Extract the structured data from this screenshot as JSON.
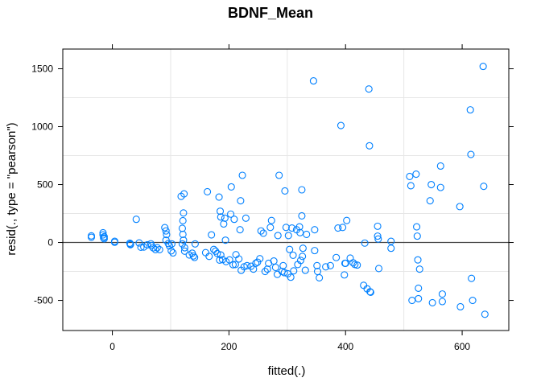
{
  "chart_data": {
    "type": "scatter",
    "title": "BDNF_Mean",
    "xlabel": "fitted(.)",
    "ylabel": "resid(., type = \"pearson\")",
    "xlim": [
      -85,
      680
    ],
    "ylim": [
      -760,
      1670
    ],
    "xticks": [
      0,
      200,
      400,
      600
    ],
    "yticks": [
      -500,
      0,
      500,
      1000,
      1500
    ],
    "grid": true,
    "reference_line_y": 0,
    "colors": {
      "points": "#0080ff",
      "grid": "#e6e6e6",
      "refline": "#444444"
    },
    "points": [
      [
        -36,
        57
      ],
      [
        -36,
        45
      ],
      [
        -16,
        84
      ],
      [
        -16,
        66
      ],
      [
        -15,
        40
      ],
      [
        -14,
        50
      ],
      [
        -14,
        32
      ],
      [
        4,
        10
      ],
      [
        4,
        2
      ],
      [
        30,
        -6
      ],
      [
        31,
        -19
      ],
      [
        31,
        -13
      ],
      [
        41,
        200
      ],
      [
        46,
        -4
      ],
      [
        49,
        -41
      ],
      [
        54,
        -39
      ],
      [
        60,
        -20
      ],
      [
        66,
        -11
      ],
      [
        67,
        -27
      ],
      [
        70,
        -46
      ],
      [
        74,
        -62
      ],
      [
        77,
        -45
      ],
      [
        81,
        -62
      ],
      [
        90,
        128
      ],
      [
        92,
        100
      ],
      [
        93,
        68
      ],
      [
        92,
        20
      ],
      [
        96,
        -9
      ],
      [
        98,
        -30
      ],
      [
        101,
        -72
      ],
      [
        104,
        -90
      ],
      [
        102,
        -12
      ],
      [
        118,
        398
      ],
      [
        122,
        255
      ],
      [
        123,
        420
      ],
      [
        121,
        188
      ],
      [
        120,
        122
      ],
      [
        121,
        70
      ],
      [
        122,
        20
      ],
      [
        120,
        -12
      ],
      [
        124,
        -45
      ],
      [
        124,
        -75
      ],
      [
        132,
        -108
      ],
      [
        137,
        -92
      ],
      [
        139,
        -116
      ],
      [
        141,
        -129
      ],
      [
        142,
        -12
      ],
      [
        163,
        438
      ],
      [
        160,
        -88
      ],
      [
        166,
        -120
      ],
      [
        170,
        66
      ],
      [
        174,
        -60
      ],
      [
        177,
        -75
      ],
      [
        180,
        -95
      ],
      [
        183,
        392
      ],
      [
        186,
        -108
      ],
      [
        184,
        -152
      ],
      [
        185,
        270
      ],
      [
        186,
        220
      ],
      [
        189,
        -148
      ],
      [
        191,
        160
      ],
      [
        193,
        210
      ],
      [
        194,
        20
      ],
      [
        195,
        -165
      ],
      [
        201,
        -150
      ],
      [
        203,
        245
      ],
      [
        204,
        480
      ],
      [
        207,
        -192
      ],
      [
        209,
        200
      ],
      [
        211,
        -190
      ],
      [
        212,
        -105
      ],
      [
        217,
        -142
      ],
      [
        219,
        110
      ],
      [
        220,
        360
      ],
      [
        221,
        -240
      ],
      [
        223,
        580
      ],
      [
        226,
        -210
      ],
      [
        229,
        210
      ],
      [
        231,
        -200
      ],
      [
        238,
        -205
      ],
      [
        242,
        -230
      ],
      [
        246,
        -180
      ],
      [
        249,
        -170
      ],
      [
        253,
        -140
      ],
      [
        255,
        100
      ],
      [
        259,
        80
      ],
      [
        262,
        -250
      ],
      [
        266,
        -230
      ],
      [
        268,
        -180
      ],
      [
        271,
        130
      ],
      [
        273,
        190
      ],
      [
        277,
        -160
      ],
      [
        280,
        -215
      ],
      [
        283,
        -275
      ],
      [
        284,
        60
      ],
      [
        286,
        580
      ],
      [
        291,
        -250
      ],
      [
        293,
        -200
      ],
      [
        295,
        -260
      ],
      [
        296,
        445
      ],
      [
        298,
        130
      ],
      [
        301,
        -270
      ],
      [
        302,
        60
      ],
      [
        304,
        -60
      ],
      [
        306,
        -300
      ],
      [
        308,
        125
      ],
      [
        310,
        -110
      ],
      [
        311,
        -245
      ],
      [
        316,
        110
      ],
      [
        318,
        -190
      ],
      [
        321,
        135
      ],
      [
        322,
        85
      ],
      [
        323,
        -155
      ],
      [
        325,
        455
      ],
      [
        325,
        230
      ],
      [
        326,
        -120
      ],
      [
        327,
        -50
      ],
      [
        331,
        -240
      ],
      [
        333,
        70
      ],
      [
        345,
        1395
      ],
      [
        347,
        110
      ],
      [
        347,
        -70
      ],
      [
        351,
        -200
      ],
      [
        352,
        -250
      ],
      [
        355,
        -305
      ],
      [
        366,
        -210
      ],
      [
        374,
        -200
      ],
      [
        384,
        -130
      ],
      [
        387,
        125
      ],
      [
        392,
        1010
      ],
      [
        395,
        130
      ],
      [
        398,
        -280
      ],
      [
        399,
        -180
      ],
      [
        400,
        -180
      ],
      [
        402,
        190
      ],
      [
        408,
        -135
      ],
      [
        413,
        -175
      ],
      [
        416,
        -190
      ],
      [
        420,
        -195
      ],
      [
        431,
        -370
      ],
      [
        433,
        -5
      ],
      [
        437,
        -400
      ],
      [
        440,
        1325
      ],
      [
        441,
        835
      ],
      [
        442,
        -425
      ],
      [
        443,
        -430
      ],
      [
        455,
        140
      ],
      [
        455,
        55
      ],
      [
        457,
        -225
      ],
      [
        456,
        30
      ],
      [
        478,
        -50
      ],
      [
        478,
        10
      ],
      [
        510,
        570
      ],
      [
        512,
        490
      ],
      [
        514,
        -500
      ],
      [
        521,
        590
      ],
      [
        522,
        135
      ],
      [
        523,
        55
      ],
      [
        524,
        -150
      ],
      [
        525,
        -395
      ],
      [
        525,
        -485
      ],
      [
        527,
        -230
      ],
      [
        545,
        360
      ],
      [
        547,
        500
      ],
      [
        549,
        -520
      ],
      [
        563,
        660
      ],
      [
        563,
        475
      ],
      [
        566,
        -445
      ],
      [
        566,
        -510
      ],
      [
        596,
        310
      ],
      [
        597,
        -555
      ],
      [
        614,
        1145
      ],
      [
        615,
        760
      ],
      [
        616,
        -310
      ],
      [
        618,
        -500
      ],
      [
        636,
        1520
      ],
      [
        637,
        485
      ],
      [
        639,
        -620
      ]
    ]
  }
}
